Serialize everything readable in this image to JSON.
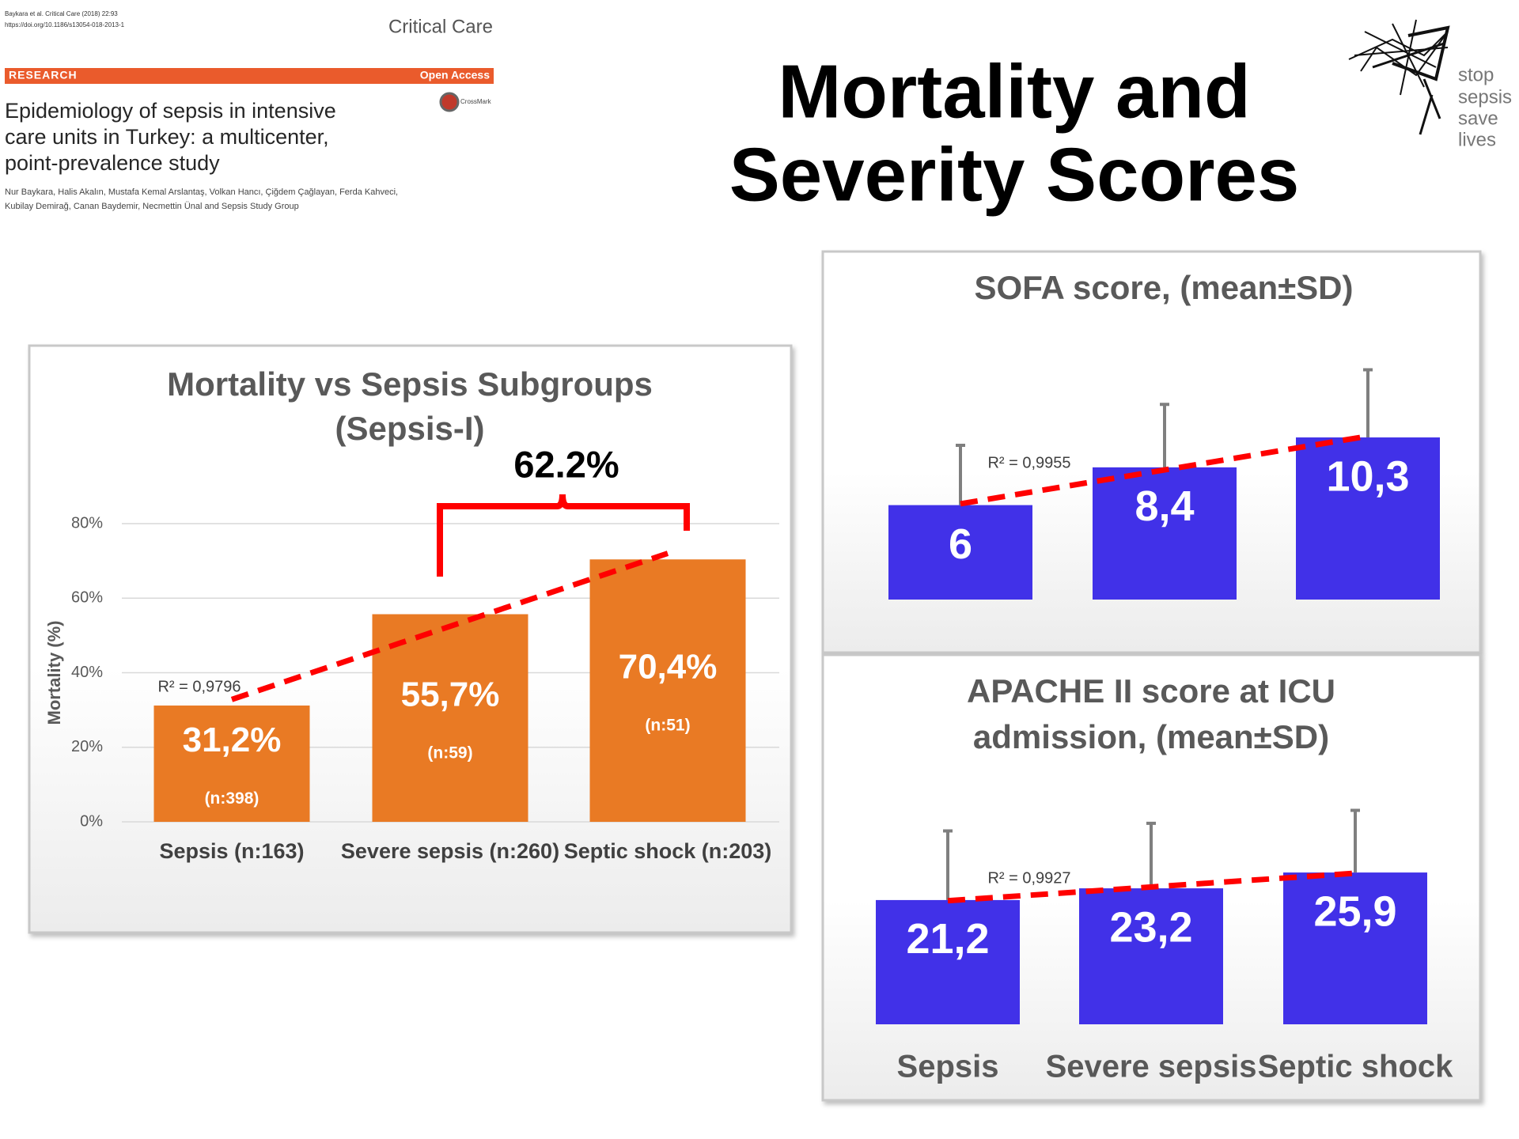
{
  "paper": {
    "citation": "Baykara et al. Critical Care (2018) 22:93",
    "doi": "https://doi.org/10.1186/s13054-018-2013-1",
    "journal": "Critical Care",
    "section": "RESEARCH",
    "access": "Open Access",
    "crossmark": "CrossMark",
    "title_lines": [
      "Epidemiology of sepsis in intensive",
      "care units in Turkey: a multicenter,",
      "point-prevalence study"
    ],
    "author_lines": [
      "Nur Baykara, Halis Akalın, Mustafa Kemal Arslantaş, Volkan Hancı, Çiğdem Çağlayan, Ferda Kahveci,",
      "Kubilay Demirağ, Canan Baydemir, Necmettin Ünal and Sepsis Study Group"
    ]
  },
  "slide_title_lines": [
    "Mortality and",
    "Severity Scores"
  ],
  "logo_lines": [
    "stop",
    "sepsis",
    "save",
    "lives"
  ],
  "chart_data": [
    {
      "type": "bar",
      "title_lines": [
        "Mortality vs Sepsis Subgroups",
        "(Sepsis-I)"
      ],
      "ylabel": "Mortality (%)",
      "categories": [
        "Sepsis (n:163)",
        "Severe sepsis (n:260)",
        "Septic shock (n:203)"
      ],
      "values": [
        31.2,
        55.7,
        70.4
      ],
      "value_labels": [
        "31,2%",
        "55,7%",
        "70,4%"
      ],
      "bar_notes": [
        "(n:398)",
        "(n:59)",
        "(n:51)"
      ],
      "color": "#e97a24",
      "trend_color": "#ff0000",
      "r2_label": "R² = 0,9796",
      "bracket_label": "62.2%",
      "bracket_color": "#ff0000",
      "ylim": [
        0,
        80
      ],
      "yticks": [
        {
          "value": 0,
          "label": "0%"
        },
        {
          "value": 20,
          "label": "20%"
        },
        {
          "value": 40,
          "label": "40%"
        },
        {
          "value": 60,
          "label": "60%"
        },
        {
          "value": 80,
          "label": "80%"
        }
      ],
      "grid": true
    },
    {
      "type": "bar",
      "title_lines": [
        "SOFA score, (mean±SD)"
      ],
      "values": [
        6,
        8.4,
        10.3
      ],
      "value_labels": [
        "6",
        "8,4",
        "10,3"
      ],
      "errors": [
        3.8,
        4.0,
        4.3
      ],
      "color": "#4131e8",
      "trend_color": "#ff0000",
      "r2_label": "R² = 0,9955"
    },
    {
      "type": "bar",
      "title_lines": [
        "APACHE II score at ICU",
        "admission, (mean±SD)"
      ],
      "categories": [
        "Sepsis",
        "Severe sepsis",
        "Septic shock"
      ],
      "values": [
        21.2,
        23.2,
        25.9
      ],
      "value_labels": [
        "21,2",
        "23,2",
        "25,9"
      ],
      "errors": [
        11.8,
        11.1,
        10.6
      ],
      "color": "#4131e8",
      "trend_color": "#ff0000",
      "r2_label": "R² = 0,9927"
    }
  ]
}
